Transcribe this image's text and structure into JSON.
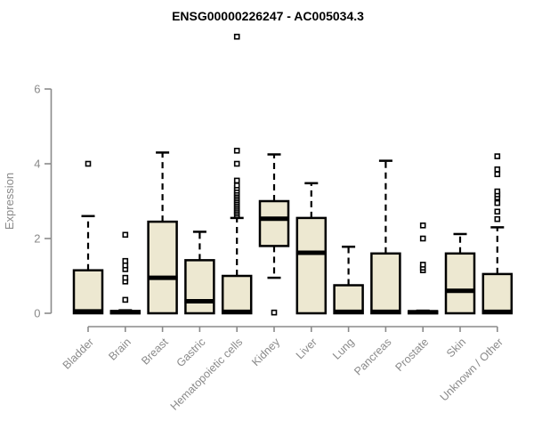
{
  "chart_data": {
    "type": "boxplot",
    "title": "ENSG00000226247 - AC005034.3",
    "ylabel": "Expression",
    "xlabel": "",
    "yticks": [
      0,
      2,
      4,
      6
    ],
    "ylim": [
      0,
      7.6
    ],
    "grid": false,
    "legend": "none",
    "categories": [
      "Bladder",
      "Brain",
      "Breast",
      "Gastric",
      "Hematopoietic cells",
      "Kidney",
      "Liver",
      "Lung",
      "Pancreas",
      "Prostate",
      "Skin",
      "Unknown / Other"
    ],
    "boxes": [
      {
        "category": "Bladder",
        "whisker_low": 0,
        "q1": 0,
        "median": 0.05,
        "q3": 1.15,
        "whisker_high": 2.6,
        "outliers": [
          4.0
        ]
      },
      {
        "category": "Brain",
        "whisker_low": 0,
        "q1": 0,
        "median": 0.03,
        "q3": 0.06,
        "whisker_high": 0.08,
        "outliers": [
          0.36,
          0.85,
          0.95,
          1.18,
          1.28,
          1.4,
          2.1
        ]
      },
      {
        "category": "Breast",
        "whisker_low": 0,
        "q1": 0,
        "median": 0.95,
        "q3": 2.45,
        "whisker_high": 4.3,
        "outliers": []
      },
      {
        "category": "Gastric",
        "whisker_low": 0,
        "q1": 0,
        "median": 0.32,
        "q3": 1.42,
        "whisker_high": 2.18,
        "outliers": []
      },
      {
        "category": "Hematopoietic cells",
        "whisker_low": 0,
        "q1": 0,
        "median": 0.04,
        "q3": 1.0,
        "whisker_high": 2.55,
        "outliers": [
          2.62,
          2.67,
          2.72,
          2.77,
          2.82,
          2.87,
          2.92,
          2.97,
          3.02,
          3.07,
          3.12,
          3.17,
          3.22,
          3.28,
          3.35,
          3.42,
          3.55,
          4.0,
          4.35,
          7.4
        ]
      },
      {
        "category": "Kidney",
        "whisker_low": 0.95,
        "q1": 1.8,
        "median": 2.53,
        "q3": 3.0,
        "whisker_high": 4.25,
        "outliers": [
          0.02
        ]
      },
      {
        "category": "Liver",
        "whisker_low": 0,
        "q1": 0,
        "median": 1.62,
        "q3": 2.55,
        "whisker_high": 3.48,
        "outliers": []
      },
      {
        "category": "Lung",
        "whisker_low": 0,
        "q1": 0,
        "median": 0.04,
        "q3": 0.75,
        "whisker_high": 1.78,
        "outliers": []
      },
      {
        "category": "Pancreas",
        "whisker_low": 0,
        "q1": 0,
        "median": 0.04,
        "q3": 1.6,
        "whisker_high": 4.08,
        "outliers": []
      },
      {
        "category": "Prostate",
        "whisker_low": 0,
        "q1": 0,
        "median": 0.03,
        "q3": 0.05,
        "whisker_high": 0.07,
        "outliers": [
          1.15,
          1.22,
          1.3,
          2.0,
          2.35
        ]
      },
      {
        "category": "Skin",
        "whisker_low": 0,
        "q1": 0,
        "median": 0.6,
        "q3": 1.6,
        "whisker_high": 2.12,
        "outliers": []
      },
      {
        "category": "Unknown / Other",
        "whisker_low": 0,
        "q1": 0,
        "median": 0.04,
        "q3": 1.05,
        "whisker_high": 2.3,
        "outliers": [
          2.52,
          2.72,
          2.95,
          3.1,
          3.18,
          3.26,
          3.72,
          3.85,
          4.2
        ]
      }
    ],
    "colors": {
      "box_fill": "#ede8d1",
      "box_stroke": "#000000",
      "axis": "#8a8a8a",
      "title": "#000000",
      "background": "#ffffff",
      "outlier_fill": "#ffffff"
    }
  }
}
